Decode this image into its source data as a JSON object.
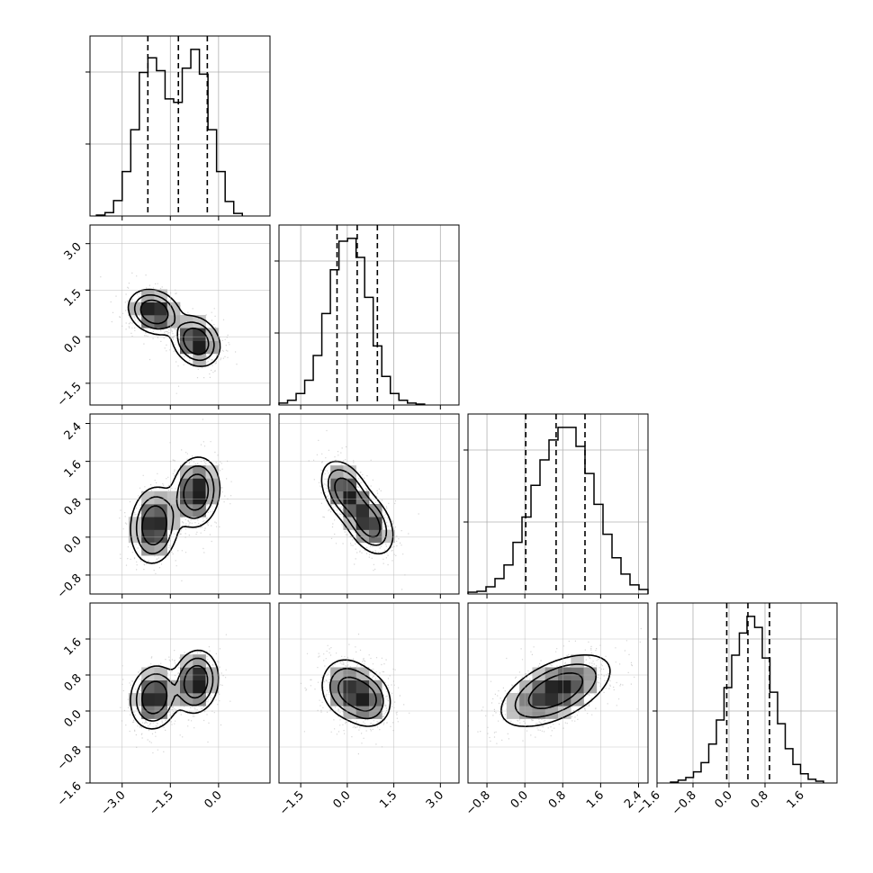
{
  "chart_data": {
    "type": "corner",
    "title": "",
    "grid": true,
    "params": [
      {
        "name": "",
        "range": [
          -4.0,
          1.6
        ],
        "ticks": [
          -3.0,
          -1.5,
          0.0
        ],
        "tick_labels": [
          "−3.0",
          "−1.5",
          "0.0"
        ],
        "quantiles": [
          -2.2,
          -1.25,
          -0.35
        ],
        "hist_edges_start": -3.8,
        "hist_bin_width": 0.267,
        "hist_counts": [
          1,
          4,
          18,
          52,
          101,
          168,
          185,
          170,
          137,
          133,
          173,
          195,
          166,
          101,
          52,
          17,
          3
        ]
      },
      {
        "name": "",
        "range": [
          -2.2,
          3.6
        ],
        "ticks": [
          -1.5,
          0.0,
          1.5,
          3.0
        ],
        "tick_labels": [
          "−1.5",
          "0.0",
          "1.5",
          "3.0"
        ],
        "quantiles": [
          -0.33,
          0.32,
          0.97
        ],
        "hist_edges_start": -2.2,
        "hist_bin_width": 0.276,
        "hist_counts": [
          2,
          5,
          12,
          26,
          52,
          96,
          142,
          172,
          175,
          155,
          113,
          62,
          30,
          12,
          5,
          2,
          1
        ]
      },
      {
        "name": "",
        "range": [
          -1.2,
          2.6
        ],
        "ticks": [
          -0.8,
          0.0,
          0.8,
          1.6,
          2.4
        ],
        "tick_labels": [
          "−0.8",
          "0.0",
          "0.8",
          "1.6",
          "2.4"
        ],
        "quantiles": [
          0.02,
          0.66,
          1.27
        ],
        "hist_edges_start": -1.2,
        "hist_bin_width": 0.19,
        "hist_counts": [
          2,
          3,
          8,
          17,
          32,
          57,
          85,
          120,
          148,
          170,
          184,
          184,
          163,
          133,
          99,
          66,
          40,
          22,
          10,
          5
        ]
      },
      {
        "name": "",
        "range": [
          -1.6,
          2.4
        ],
        "ticks": [
          -1.6,
          -0.8,
          0.0,
          0.8,
          1.6
        ],
        "tick_labels": [
          "−1.6",
          "−0.8",
          "0.0",
          "0.8",
          "1.6"
        ],
        "quantiles": [
          -0.05,
          0.42,
          0.9
        ],
        "hist_edges_start": -1.3,
        "hist_bin_width": 0.17,
        "hist_counts": [
          1,
          3,
          6,
          12,
          22,
          42,
          68,
          103,
          138,
          162,
          180,
          168,
          135,
          98,
          64,
          37,
          20,
          10,
          4,
          2
        ]
      }
    ],
    "pairs": [
      {
        "x": 0,
        "y": 1,
        "modes": [
          {
            "mx": -2.0,
            "my": 0.8,
            "sx": 0.38,
            "sy": 0.34,
            "rho": -0.2,
            "w": 1.0
          },
          {
            "mx": -0.7,
            "my": -0.15,
            "sx": 0.35,
            "sy": 0.38,
            "rho": -0.2,
            "w": 1.0
          }
        ]
      },
      {
        "x": 0,
        "y": 2,
        "modes": [
          {
            "mx": -2.0,
            "my": 0.25,
            "sx": 0.35,
            "sy": 0.38,
            "rho": 0.1,
            "w": 1.0
          },
          {
            "mx": -0.7,
            "my": 0.95,
            "sx": 0.35,
            "sy": 0.35,
            "rho": 0.1,
            "w": 1.0
          }
        ]
      },
      {
        "x": 1,
        "y": 2,
        "modes": [
          {
            "mx": -0.05,
            "my": 0.95,
            "sx": 0.38,
            "sy": 0.32,
            "rho": -0.4,
            "w": 1.0
          },
          {
            "mx": 0.7,
            "my": 0.3,
            "sx": 0.38,
            "sy": 0.32,
            "rho": -0.4,
            "w": 1.0
          }
        ]
      },
      {
        "x": 0,
        "y": 3,
        "modes": [
          {
            "mx": -2.0,
            "my": 0.3,
            "sx": 0.35,
            "sy": 0.33,
            "rho": 0.1,
            "w": 1.0
          },
          {
            "mx": -0.7,
            "my": 0.65,
            "sx": 0.33,
            "sy": 0.33,
            "rho": 0.1,
            "w": 1.0
          }
        ]
      },
      {
        "x": 1,
        "y": 3,
        "modes": [
          {
            "mx": 0.0,
            "my": 0.5,
            "sx": 0.42,
            "sy": 0.33,
            "rho": -0.1,
            "w": 1.0
          },
          {
            "mx": 0.65,
            "my": 0.25,
            "sx": 0.38,
            "sy": 0.3,
            "rho": -0.1,
            "w": 1.0
          }
        ]
      },
      {
        "x": 2,
        "y": 3,
        "modes": [
          {
            "mx": 0.65,
            "my": 0.45,
            "sx": 0.55,
            "sy": 0.38,
            "rho": 0.55,
            "w": 1.0
          }
        ]
      }
    ]
  },
  "colors": {
    "hist_line": "#000000",
    "contour": "#000000",
    "grid": "#b0b0b0",
    "points": "#888888"
  }
}
